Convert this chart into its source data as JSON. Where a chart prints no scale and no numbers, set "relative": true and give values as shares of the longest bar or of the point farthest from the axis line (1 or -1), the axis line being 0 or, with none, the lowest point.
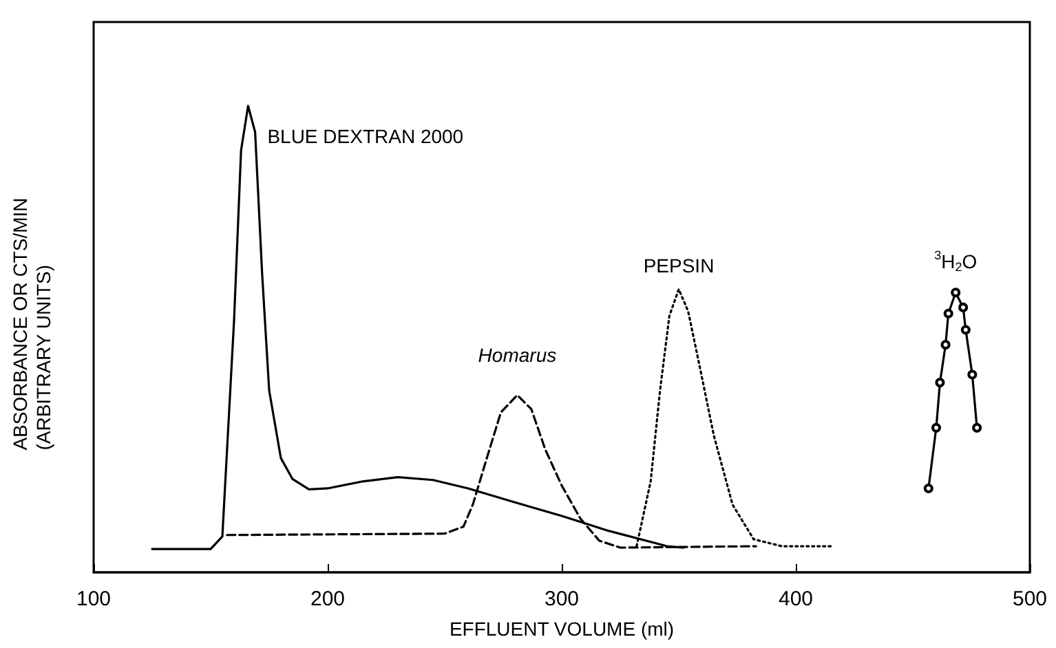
{
  "chart_data": {
    "type": "line",
    "relative": true,
    "xlabel": "EFFLUENT VOLUME (ml)",
    "ylabel": "ABSORBANCE OR CTS/MIN\n(ARBITRARY UNITS)",
    "xlim": [
      100,
      500
    ],
    "xticks": [
      100,
      200,
      300,
      400,
      500
    ],
    "grid": false,
    "legend": false,
    "series": [
      {
        "name": "BLUE DEXTRAN 2000",
        "color": "#000000",
        "line_style": "solid",
        "marker": "none",
        "x": [
          125,
          150,
          155,
          160,
          163,
          166,
          169,
          172,
          175,
          180,
          185,
          192,
          200,
          215,
          230,
          245,
          260,
          280,
          300,
          320,
          345,
          352
        ],
        "values": [
          0.05,
          0.05,
          0.077,
          0.54,
          0.905,
          1.0,
          0.944,
          0.64,
          0.39,
          0.245,
          0.2,
          0.178,
          0.18,
          0.195,
          0.204,
          0.198,
          0.18,
          0.15,
          0.121,
          0.089,
          0.056,
          0.053
        ]
      },
      {
        "name": "Homarus",
        "color": "#000000",
        "line_style": "dashed",
        "marker": "none",
        "x": [
          157,
          250,
          258,
          262,
          268,
          274,
          281,
          287,
          293,
          300,
          308,
          316,
          325,
          383
        ],
        "values": [
          0.08,
          0.083,
          0.098,
          0.145,
          0.245,
          0.343,
          0.38,
          0.35,
          0.263,
          0.186,
          0.115,
          0.068,
          0.053,
          0.056
        ]
      },
      {
        "name": "PEPSIN",
        "color": "#000000",
        "line_style": "dotted",
        "marker": "none",
        "x": [
          332,
          338,
          342,
          346,
          350,
          354,
          359,
          365,
          373,
          382,
          394,
          415
        ],
        "values": [
          0.056,
          0.195,
          0.39,
          0.55,
          0.607,
          0.56,
          0.44,
          0.293,
          0.145,
          0.071,
          0.056,
          0.056
        ]
      },
      {
        "name": "$^{3}$H$_{2}$O",
        "color": "#000000",
        "line_style": "solid",
        "marker": "circle",
        "x": [
          456.7,
          460.0,
          461.6,
          464.0,
          465.2,
          468.3,
          471.5,
          472.6,
          475.4,
          477.4
        ],
        "values": [
          0.18,
          0.31,
          0.407,
          0.488,
          0.555,
          0.6,
          0.568,
          0.52,
          0.424,
          0.31
        ]
      }
    ]
  }
}
